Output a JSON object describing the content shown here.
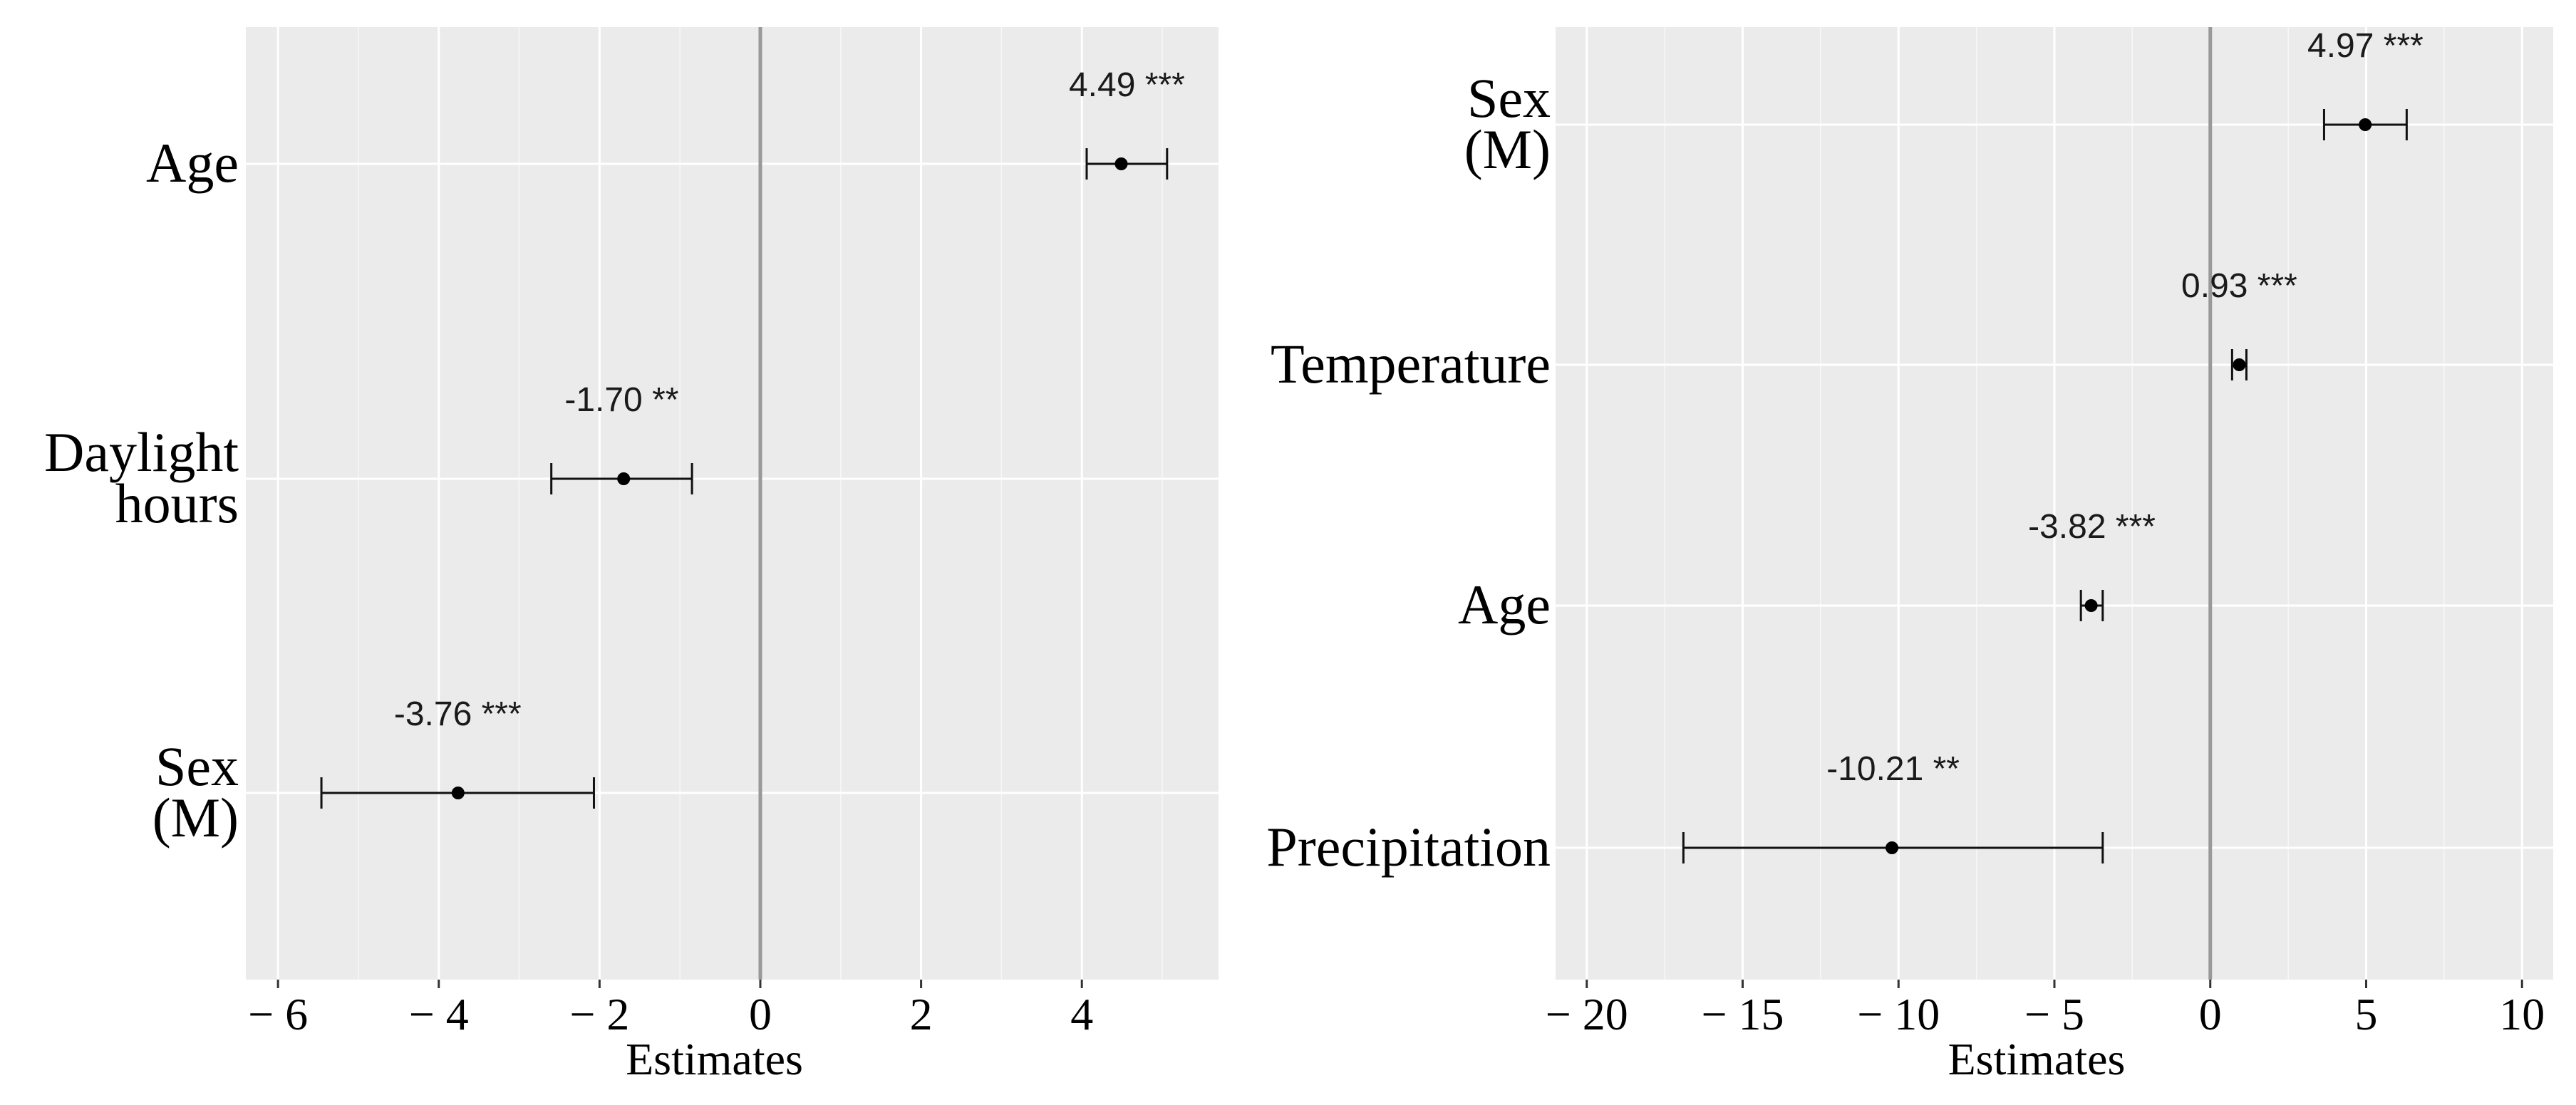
{
  "chart_data": [
    {
      "type": "forest",
      "xlabel": "Estimates",
      "xlim": [
        -6.4,
        5.7
      ],
      "xticks": [
        -6,
        -4,
        -2,
        0,
        2,
        4
      ],
      "xtick_labels": [
        "− 6",
        "− 4",
        "− 2",
        "0",
        "2",
        "4"
      ],
      "rows": [
        {
          "term": [
            "Age"
          ],
          "estimate": 4.49,
          "low": 4.06,
          "high": 5.06,
          "label": "4.49 ***"
        },
        {
          "term": [
            "Daylight",
            "hours"
          ],
          "estimate": -1.7,
          "low": -2.6,
          "high": -0.85,
          "label": "-1.70 **"
        },
        {
          "term": [
            "Sex",
            "(M)"
          ],
          "estimate": -3.76,
          "low": -5.46,
          "high": -2.07,
          "label": "-3.76 ***"
        }
      ]
    },
    {
      "type": "forest",
      "xlabel": "Estimates",
      "xlim": [
        -21,
        11
      ],
      "xticks": [
        -20,
        -15,
        -10,
        -5,
        0,
        5,
        10
      ],
      "xtick_labels": [
        "− 20",
        "− 15",
        "− 10",
        "− 5",
        "0",
        "5",
        "10"
      ],
      "rows": [
        {
          "term": [
            "Sex",
            "(M)"
          ],
          "estimate": 4.97,
          "low": 3.65,
          "high": 6.3,
          "label": "4.97 ***"
        },
        {
          "term": [
            "Temperature"
          ],
          "estimate": 0.93,
          "low": 0.7,
          "high": 1.16,
          "label": "0.93 ***"
        },
        {
          "term": [
            "Age"
          ],
          "estimate": -3.82,
          "low": -4.15,
          "high": -3.45,
          "label": "-3.82 ***"
        },
        {
          "term": [
            "Precipitation"
          ],
          "estimate": -10.21,
          "low": -16.9,
          "high": -3.45,
          "label": "-10.21 **"
        }
      ]
    }
  ]
}
